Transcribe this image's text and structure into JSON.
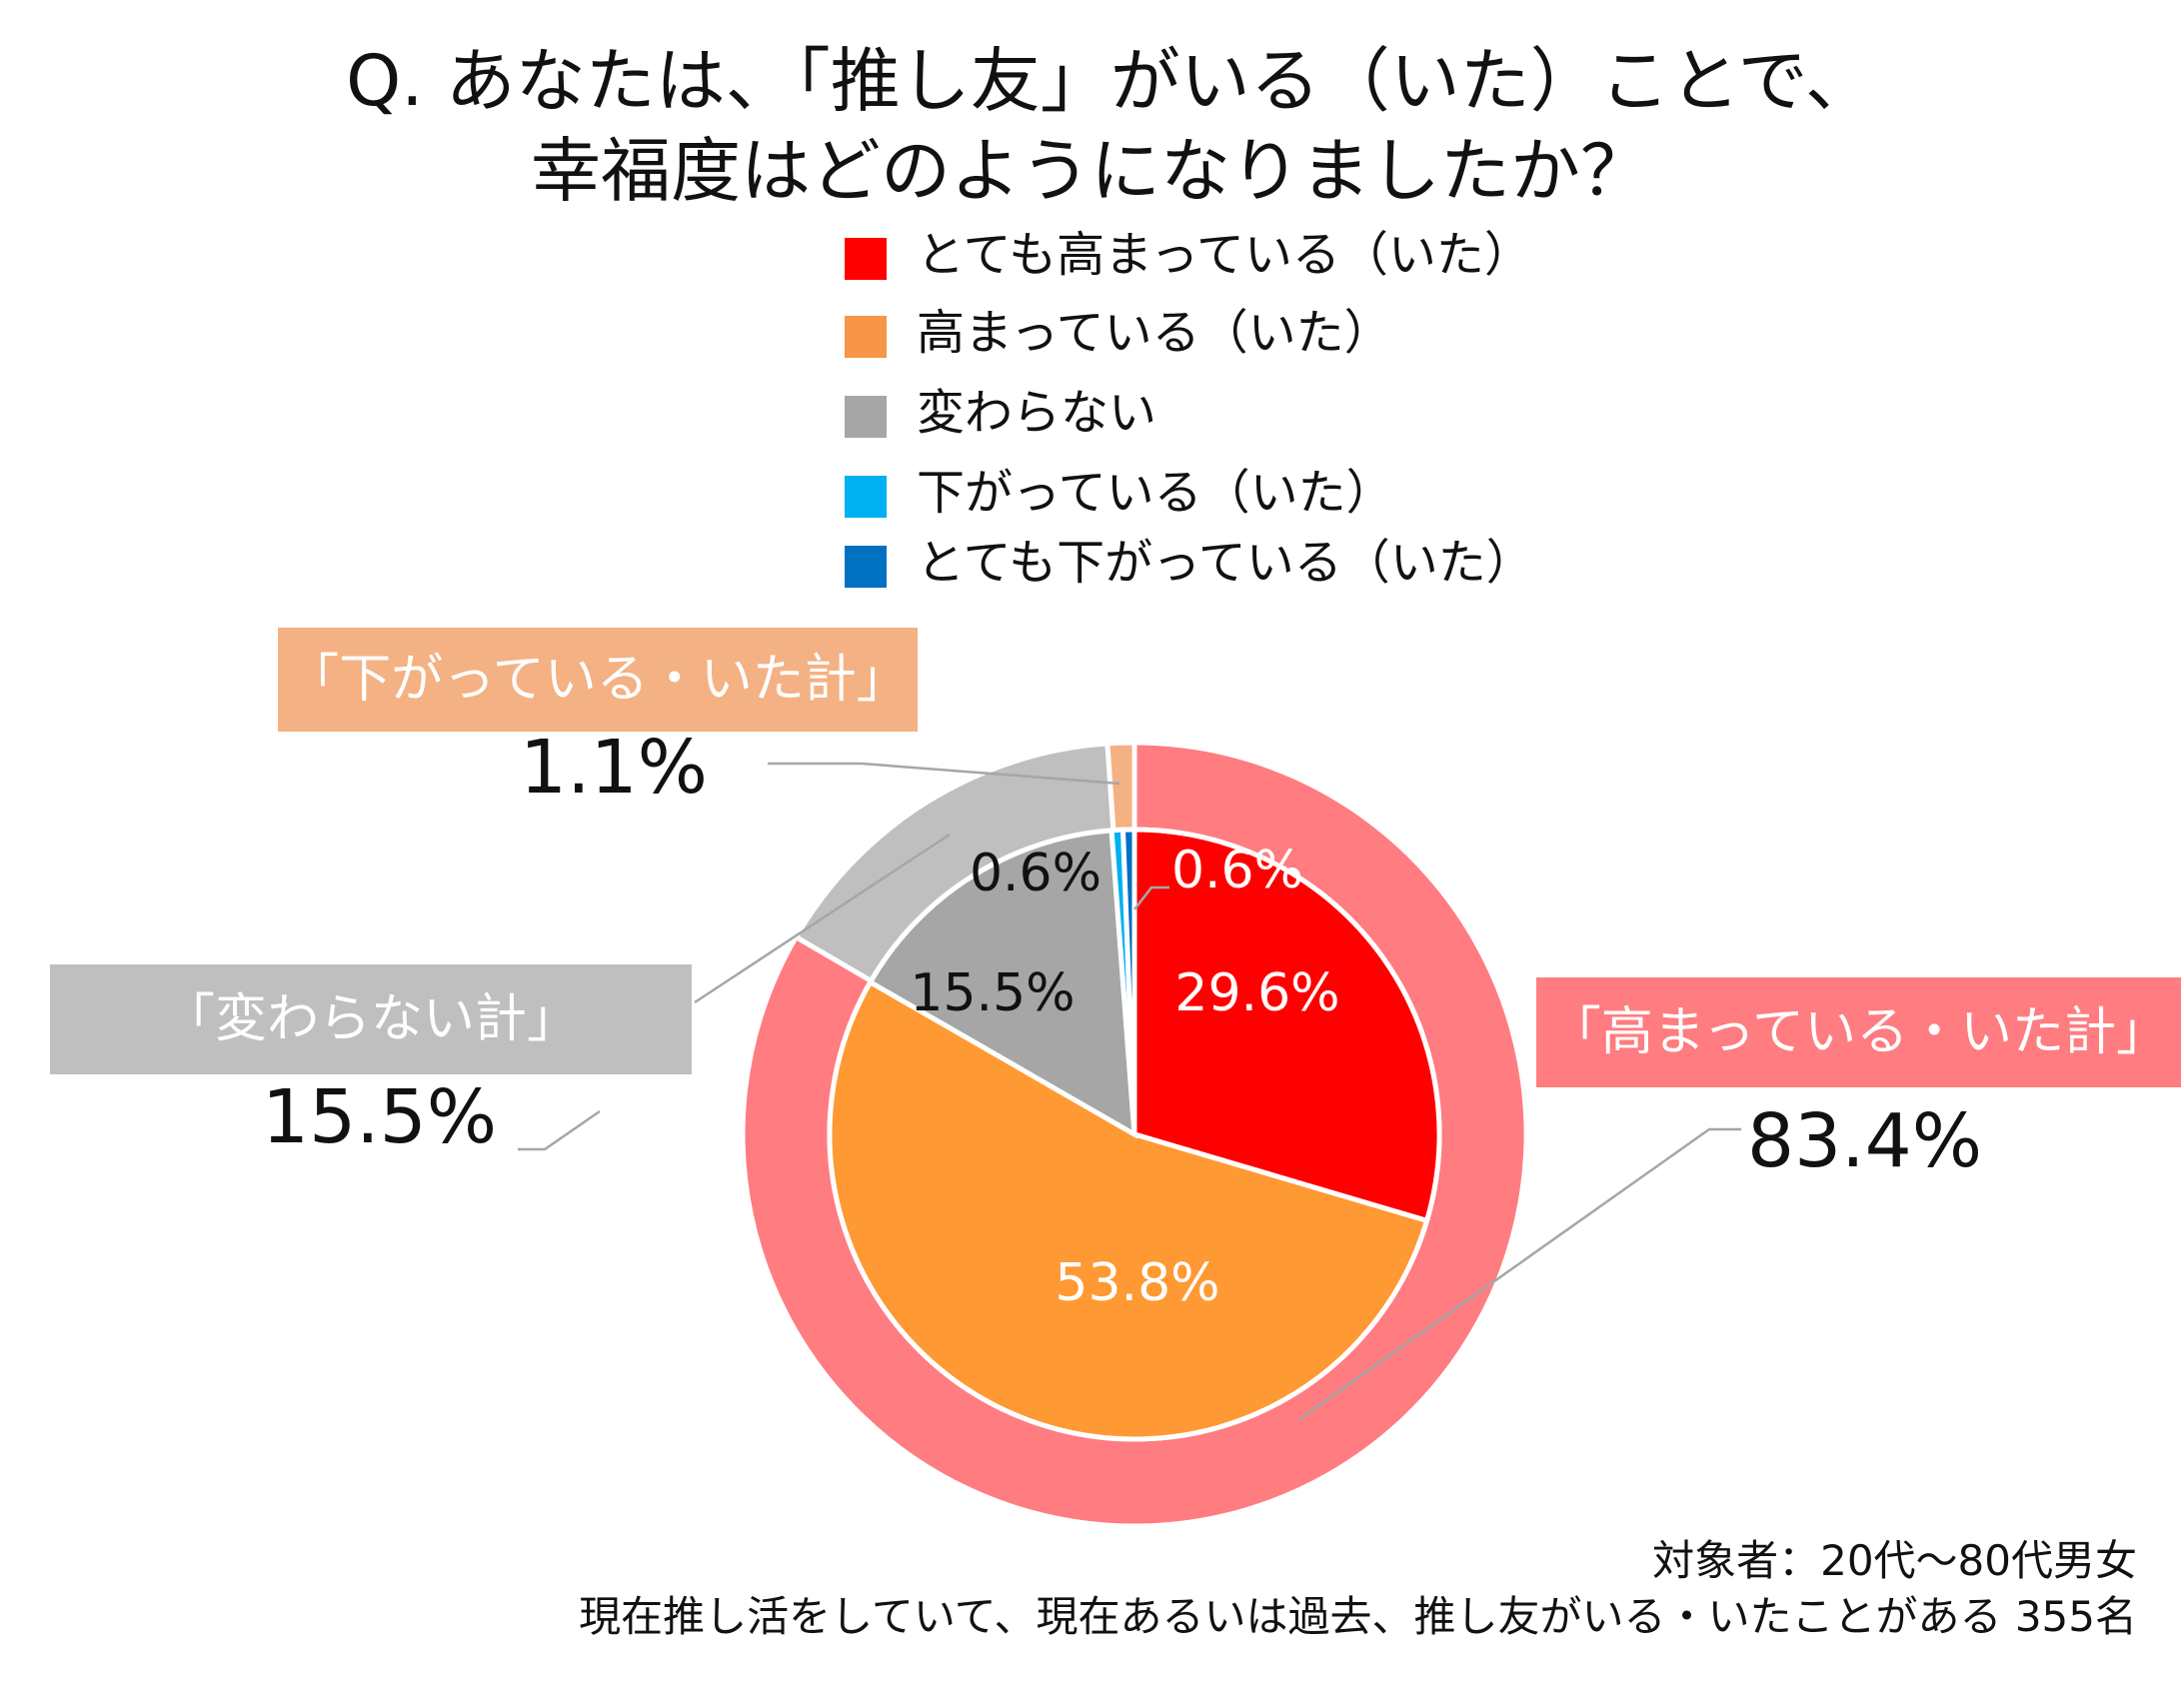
{
  "title": {
    "line1": "Q. あなたは、「推し友」がいる（いた）ことで、",
    "line2": "幸福度はどのようになりましたか？"
  },
  "chart_data": {
    "type": "pie",
    "subtype": "double-donut",
    "legend_position": "top-right",
    "inner": {
      "categories": [
        "とても高まっている（いた）",
        "高まっている（いた）",
        "変わらない",
        "下がっている（いた）",
        "とても下がっている（いた）"
      ],
      "values": [
        29.6,
        53.8,
        15.5,
        0.6,
        0.6
      ],
      "labels": [
        "29.6%",
        "53.8%",
        "15.5%",
        "0.6%",
        "0.6%"
      ],
      "colors": [
        "#ff0000",
        "#ff9933",
        "#a6a6a6",
        "#00b0f0",
        "#0070c0"
      ]
    },
    "outer": {
      "categories": [
        "「高まっている・いた計」",
        "「変わらない計」",
        "「下がっている・いた計」"
      ],
      "values": [
        83.4,
        15.5,
        1.1
      ],
      "labels": [
        "83.4%",
        "15.5%",
        "1.1%"
      ],
      "colors": [
        "#ff7c80",
        "#bfbfbf",
        "#f4b183"
      ]
    }
  },
  "legend": [
    {
      "label": "とても高まっている（いた）",
      "color": "#ff0000"
    },
    {
      "label": "高まっている（いた）",
      "color": "#f79646"
    },
    {
      "label": "変わらない",
      "color": "#a6a6a6"
    },
    {
      "label": "下がっている（いた）",
      "color": "#00b0f0"
    },
    {
      "label": "とても下がっている（いた）",
      "color": "#0070c0"
    }
  ],
  "callouts": {
    "down": {
      "label": "「下がっている・いた計」",
      "value": "1.1%",
      "color": "#f4b183"
    },
    "same": {
      "label": "「変わらない計」",
      "value": "15.5%",
      "color": "#bfbfbf"
    },
    "up": {
      "label": "「高まっている・いた計」",
      "value": "83.4%",
      "color": "#ff7c80"
    }
  },
  "note": {
    "line1": "対象者：20代～80代男女",
    "line2": "現在推し活をしていて、現在あるいは過去、推し友がいる・いたことがある 355名"
  }
}
